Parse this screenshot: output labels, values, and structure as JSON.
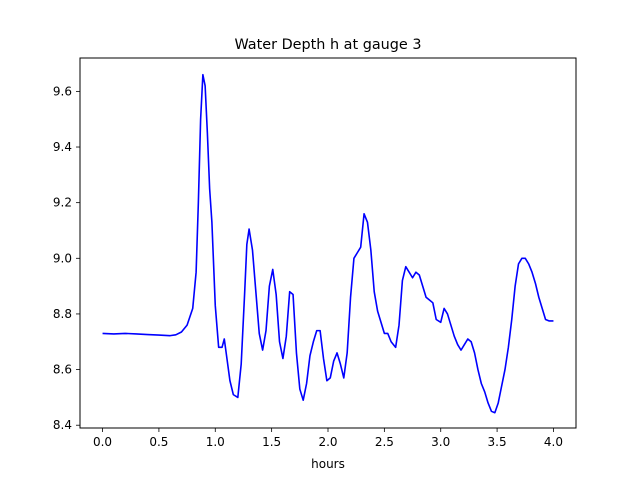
{
  "chart_data": {
    "type": "line",
    "title": "Water Depth h at gauge 3",
    "xlabel": "hours",
    "ylabel": "",
    "xlim": [
      -0.2,
      4.2
    ],
    "ylim": [
      8.39,
      9.72
    ],
    "xticks": [
      0.0,
      0.5,
      1.0,
      1.5,
      2.0,
      2.5,
      3.0,
      3.5,
      4.0
    ],
    "xtick_labels": [
      "0.0",
      "0.5",
      "1.0",
      "1.5",
      "2.0",
      "2.5",
      "3.0",
      "3.5",
      "4.0"
    ],
    "yticks": [
      8.4,
      8.6,
      8.8,
      9.0,
      9.2,
      9.4,
      9.6
    ],
    "ytick_labels": [
      "8.4",
      "8.6",
      "8.8",
      "9.0",
      "9.2",
      "9.4",
      "9.6"
    ],
    "grid": false,
    "series": [
      {
        "color": "#0000ff",
        "x": [
          0.0,
          0.1,
          0.2,
          0.3,
          0.4,
          0.5,
          0.6,
          0.65,
          0.7,
          0.75,
          0.8,
          0.83,
          0.85,
          0.87,
          0.89,
          0.91,
          0.93,
          0.95,
          0.97,
          1.0,
          1.03,
          1.06,
          1.08,
          1.1,
          1.13,
          1.16,
          1.2,
          1.23,
          1.26,
          1.28,
          1.3,
          1.33,
          1.36,
          1.39,
          1.42,
          1.45,
          1.48,
          1.51,
          1.54,
          1.57,
          1.6,
          1.63,
          1.66,
          1.69,
          1.72,
          1.75,
          1.78,
          1.81,
          1.84,
          1.87,
          1.9,
          1.93,
          1.96,
          1.99,
          2.02,
          2.05,
          2.08,
          2.11,
          2.14,
          2.17,
          2.2,
          2.23,
          2.26,
          2.29,
          2.32,
          2.35,
          2.38,
          2.41,
          2.44,
          2.47,
          2.5,
          2.53,
          2.56,
          2.6,
          2.63,
          2.66,
          2.69,
          2.72,
          2.75,
          2.78,
          2.81,
          2.84,
          2.87,
          2.9,
          2.93,
          2.96,
          3.0,
          3.03,
          3.06,
          3.09,
          3.12,
          3.15,
          3.18,
          3.21,
          3.24,
          3.27,
          3.3,
          3.33,
          3.36,
          3.39,
          3.42,
          3.45,
          3.48,
          3.51,
          3.54,
          3.57,
          3.6,
          3.63,
          3.66,
          3.69,
          3.72,
          3.75,
          3.78,
          3.81,
          3.84,
          3.87,
          3.9,
          3.93,
          3.96,
          4.0
        ],
        "y": [
          8.73,
          8.728,
          8.73,
          8.728,
          8.726,
          8.724,
          8.722,
          8.725,
          8.735,
          8.76,
          8.82,
          8.95,
          9.2,
          9.5,
          9.66,
          9.62,
          9.45,
          9.25,
          9.13,
          8.83,
          8.68,
          8.68,
          8.71,
          8.65,
          8.56,
          8.51,
          8.5,
          8.62,
          8.87,
          9.05,
          9.105,
          9.03,
          8.88,
          8.73,
          8.67,
          8.74,
          8.9,
          8.96,
          8.87,
          8.7,
          8.64,
          8.72,
          8.88,
          8.87,
          8.66,
          8.53,
          8.49,
          8.55,
          8.65,
          8.7,
          8.74,
          8.74,
          8.64,
          8.56,
          8.57,
          8.63,
          8.66,
          8.62,
          8.57,
          8.66,
          8.86,
          9.0,
          9.02,
          9.04,
          9.16,
          9.13,
          9.03,
          8.88,
          8.81,
          8.77,
          8.73,
          8.73,
          8.7,
          8.68,
          8.76,
          8.92,
          8.97,
          8.95,
          8.93,
          8.95,
          8.94,
          8.9,
          8.86,
          8.85,
          8.84,
          8.78,
          8.77,
          8.82,
          8.8,
          8.76,
          8.72,
          8.69,
          8.67,
          8.69,
          8.71,
          8.7,
          8.66,
          8.6,
          8.55,
          8.52,
          8.48,
          8.45,
          8.445,
          8.48,
          8.54,
          8.6,
          8.68,
          8.78,
          8.9,
          8.98,
          9.0,
          9.0,
          8.98,
          8.95,
          8.91,
          8.86,
          8.82,
          8.78,
          8.775,
          8.775
        ]
      }
    ]
  }
}
